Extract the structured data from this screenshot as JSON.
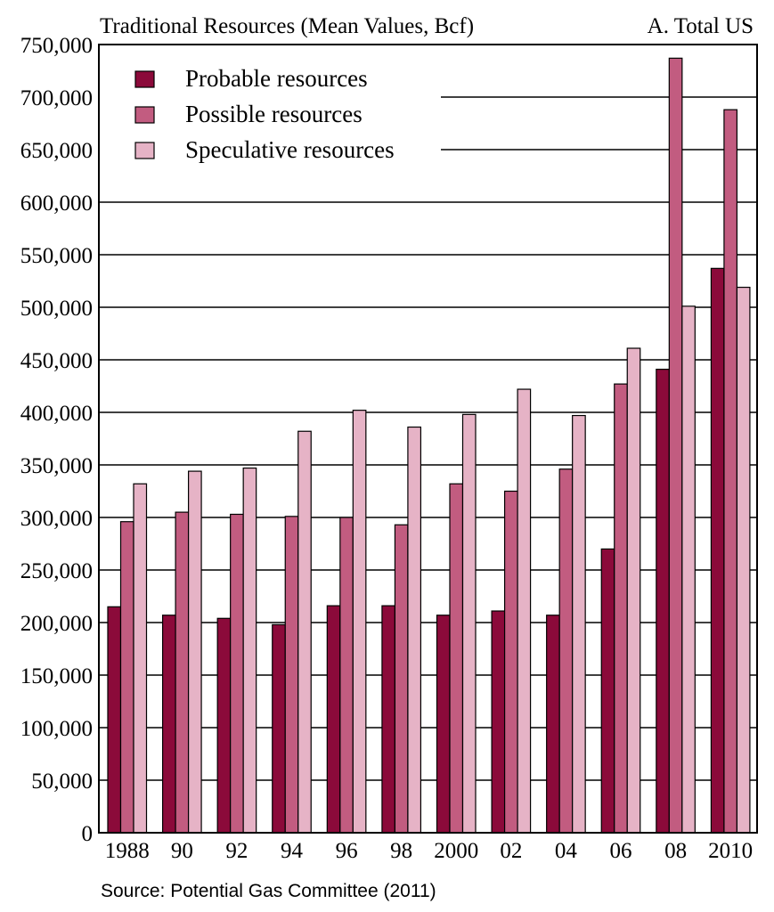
{
  "chart_data": {
    "type": "bar",
    "title": "Traditional Resources (Mean Values, Bcf)",
    "panel_label": "A. Total US",
    "source": "Source: Potential Gas Committee (2011)",
    "categories": [
      "1988",
      "90",
      "92",
      "94",
      "96",
      "98",
      "2000",
      "02",
      "04",
      "06",
      "08",
      "2010"
    ],
    "series": [
      {
        "name": "Probable resources",
        "color": "#8b0a3a",
        "values": [
          215000,
          207000,
          204000,
          198000,
          216000,
          216000,
          207000,
          211000,
          207000,
          270000,
          441000,
          537000
        ]
      },
      {
        "name": "Possible resources",
        "color": "#c25c80",
        "values": [
          296000,
          305000,
          303000,
          301000,
          300000,
          293000,
          332000,
          325000,
          346000,
          427000,
          737000,
          688000
        ]
      },
      {
        "name": "Speculative resources",
        "color": "#e6b3c6",
        "values": [
          332000,
          344000,
          347000,
          382000,
          402000,
          386000,
          398000,
          422000,
          397000,
          461000,
          501000,
          519000
        ]
      }
    ],
    "ylim": [
      0,
      750000
    ],
    "yticks": [
      "0",
      "50,000",
      "100,000",
      "150,000",
      "200,000",
      "250,000",
      "300,000",
      "350,000",
      "400,000",
      "450,000",
      "500,000",
      "550,000",
      "600,000",
      "650,000",
      "700,000",
      "750,000"
    ],
    "ytick_values": [
      0,
      50000,
      100000,
      150000,
      200000,
      250000,
      300000,
      350000,
      400000,
      450000,
      500000,
      550000,
      600000,
      650000,
      700000,
      750000
    ],
    "grid": true,
    "legend_position": "top-left"
  }
}
